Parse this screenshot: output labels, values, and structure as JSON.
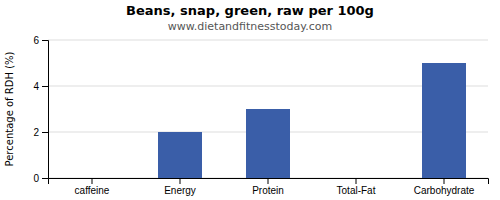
{
  "chart_data": {
    "type": "bar",
    "title": "Beans, snap, green, raw per 100g",
    "subtitle": "www.dietandfitnesstoday.com",
    "categories": [
      "caffeine",
      "Energy",
      "Protein",
      "Total-Fat",
      "Carbohydrate"
    ],
    "values": [
      0,
      2.0,
      3.0,
      0,
      5.0
    ],
    "color": "#3a5ea8",
    "ylabel": "Percentage of RDH (%)",
    "ylim": [
      0,
      6
    ],
    "yticks": [
      0,
      2,
      4,
      6
    ],
    "grid": true
  }
}
